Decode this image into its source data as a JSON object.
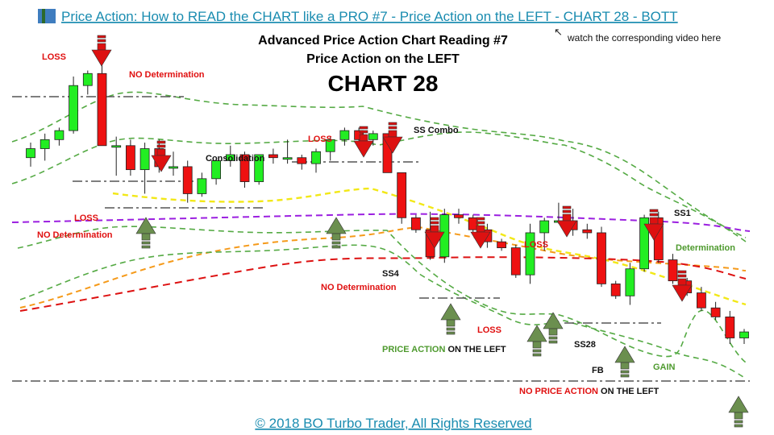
{
  "header": {
    "link_text": "Price Action: How to READ the CHART like a PRO #7 - Price Action on the LEFT - CHART 28 - BOTT",
    "note": "watch the corresponding  video  here",
    "title_line1": "Advanced Price Action Chart Reading #7",
    "title_line2": "Price Action on the LEFT",
    "title_big": "CHART 28"
  },
  "footer": {
    "copyright": "© 2018 BO Turbo Trader, All Rights Reserved"
  },
  "colors": {
    "bull": "#22ee22",
    "bear": "#ee1111",
    "arrow_red": "#dd1111",
    "arrow_green": "#6b8f4f",
    "band_green": "#55aa44",
    "purple": "#9b1fe0",
    "yellow": "#f2e817",
    "orange": "#f59a1a",
    "red_line": "#dd1111",
    "level_gray": "#555555",
    "text_red": "#e01010",
    "text_green": "#4e9a2e",
    "link": "#1a8cb0"
  },
  "labels": {
    "loss_1": "LOSS",
    "no_det_1": "NO Determination",
    "consolidation": "Consolidation",
    "loss_2": "LOSS",
    "ss_combo": "SS Combo",
    "loss_3": "LOSS",
    "no_det_2": "NO Determination",
    "ss4": "SS4",
    "no_det_3": "NO Determination",
    "loss_4": "LOSS",
    "loss_5": "LOSS",
    "ss1": "SS1",
    "determination": "Determination",
    "pa_left_1": "PRICE ACTION",
    "pa_left_2": " ON THE LEFT",
    "ss28": "SS28",
    "fb": "FB",
    "gain": "GAIN",
    "no_pa_1": "NO PRICE ACTION",
    "no_pa_2": " ON THE LEFT"
  },
  "chart_data": {
    "type": "candlestick",
    "y_range": [
      0,
      100
    ],
    "candles": [
      {
        "o": 73,
        "h": 78,
        "l": 70,
        "c": 76
      },
      {
        "o": 76,
        "h": 81,
        "l": 72,
        "c": 79
      },
      {
        "o": 79,
        "h": 83,
        "l": 77,
        "c": 82
      },
      {
        "o": 82,
        "h": 100,
        "l": 81,
        "c": 97
      },
      {
        "o": 97,
        "h": 102,
        "l": 94,
        "c": 101
      },
      {
        "o": 101,
        "h": 105,
        "l": 77,
        "c": 77
      },
      {
        "o": 77,
        "h": 80,
        "l": 67,
        "c": 77
      },
      {
        "o": 77,
        "h": 79,
        "l": 67,
        "c": 69
      },
      {
        "o": 69,
        "h": 78,
        "l": 61,
        "c": 76
      },
      {
        "o": 76,
        "h": 79,
        "l": 68,
        "c": 70
      },
      {
        "o": 70,
        "h": 75,
        "l": 67,
        "c": 70
      },
      {
        "o": 70,
        "h": 72,
        "l": 58,
        "c": 61
      },
      {
        "o": 61,
        "h": 68,
        "l": 60,
        "c": 66
      },
      {
        "o": 66,
        "h": 72,
        "l": 64,
        "c": 72
      },
      {
        "o": 72,
        "h": 77,
        "l": 70,
        "c": 74
      },
      {
        "o": 74,
        "h": 75,
        "l": 63,
        "c": 65
      },
      {
        "o": 65,
        "h": 74,
        "l": 64,
        "c": 74
      },
      {
        "o": 74,
        "h": 76,
        "l": 71,
        "c": 73
      },
      {
        "o": 73,
        "h": 79,
        "l": 71,
        "c": 73
      },
      {
        "o": 73,
        "h": 74,
        "l": 69,
        "c": 71
      },
      {
        "o": 71,
        "h": 76,
        "l": 68,
        "c": 75
      },
      {
        "o": 75,
        "h": 80,
        "l": 72,
        "c": 79
      },
      {
        "o": 79,
        "h": 83,
        "l": 77,
        "c": 82
      },
      {
        "o": 82,
        "h": 83,
        "l": 78,
        "c": 79
      },
      {
        "o": 79,
        "h": 82,
        "l": 77,
        "c": 81
      },
      {
        "o": 81,
        "h": 81,
        "l": 68,
        "c": 68
      },
      {
        "o": 68,
        "h": 68,
        "l": 51,
        "c": 53
      },
      {
        "o": 53,
        "h": 54,
        "l": 48,
        "c": 49
      },
      {
        "o": 49,
        "h": 55,
        "l": 39,
        "c": 40
      },
      {
        "o": 40,
        "h": 56,
        "l": 38,
        "c": 54
      },
      {
        "o": 54,
        "h": 56,
        "l": 51,
        "c": 53
      },
      {
        "o": 53,
        "h": 54,
        "l": 48,
        "c": 49
      },
      {
        "o": 49,
        "h": 51,
        "l": 43,
        "c": 45
      },
      {
        "o": 45,
        "h": 46,
        "l": 42,
        "c": 43
      },
      {
        "o": 43,
        "h": 44,
        "l": 33,
        "c": 34
      },
      {
        "o": 34,
        "h": 51,
        "l": 31,
        "c": 48
      },
      {
        "o": 48,
        "h": 53,
        "l": 42,
        "c": 52
      },
      {
        "o": 52,
        "h": 58,
        "l": 51,
        "c": 52
      },
      {
        "o": 52,
        "h": 56,
        "l": 47,
        "c": 49
      },
      {
        "o": 49,
        "h": 51,
        "l": 46,
        "c": 48
      },
      {
        "o": 48,
        "h": 50,
        "l": 30,
        "c": 31
      },
      {
        "o": 31,
        "h": 32,
        "l": 26,
        "c": 27
      },
      {
        "o": 27,
        "h": 38,
        "l": 24,
        "c": 36
      },
      {
        "o": 36,
        "h": 54,
        "l": 35,
        "c": 53
      },
      {
        "o": 53,
        "h": 55,
        "l": 38,
        "c": 39
      },
      {
        "o": 39,
        "h": 41,
        "l": 31,
        "c": 32
      },
      {
        "o": 32,
        "h": 33,
        "l": 27,
        "c": 28
      },
      {
        "o": 28,
        "h": 30,
        "l": 22,
        "c": 23
      },
      {
        "o": 23,
        "h": 25,
        "l": 19,
        "c": 20
      },
      {
        "o": 20,
        "h": 22,
        "l": 11,
        "c": 13
      },
      {
        "o": 13,
        "h": 16,
        "l": 11,
        "c": 15
      }
    ]
  }
}
